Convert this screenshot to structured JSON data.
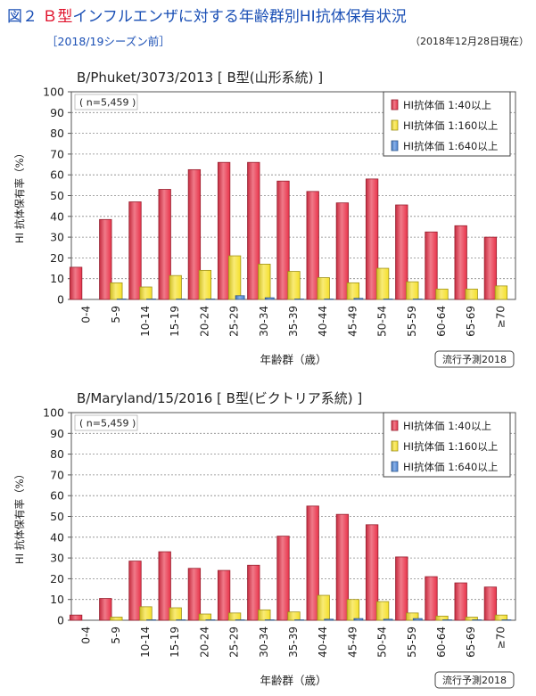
{
  "header": {
    "fig_label": "図２",
    "title_highlight": "Ｂ型",
    "title_rest": "インフルエンザに対する年齢群別HI抗体保有状況",
    "subtitle": "［2018/19シーズン前］",
    "date": "（2018年12月28日現在）"
  },
  "chart_data": [
    {
      "type": "bar",
      "title": "B/Phuket/3073/2013 [ B型(山形系統) ]",
      "annotation": "( n=5,459 )",
      "xlabel": "年齢群（歳）",
      "ylabel": "HI 抗体保有率（%）",
      "ylim": [
        0,
        100
      ],
      "yticks": [
        0,
        10,
        20,
        30,
        40,
        50,
        60,
        70,
        80,
        90,
        100
      ],
      "grid": true,
      "legend_position": "top-right",
      "badge": "流行予測2018",
      "categories": [
        "0-4",
        "5-9",
        "10-14",
        "15-19",
        "20-24",
        "25-29",
        "30-34",
        "35-39",
        "40-44",
        "45-49",
        "50-54",
        "55-59",
        "60-64",
        "65-69",
        "≥70"
      ],
      "series": [
        {
          "name": "HI抗体価 1:40以上",
          "color": "#e8334a",
          "values": [
            15.5,
            38.5,
            47,
            53,
            62.5,
            66,
            66,
            57,
            52,
            46.5,
            58,
            45.5,
            32.5,
            35.5,
            30
          ]
        },
        {
          "name": "HI抗体価 1:160以上",
          "color": "#f5e02a",
          "values": [
            0,
            8,
            6,
            11.5,
            14,
            21,
            17,
            13.5,
            10.5,
            8,
            15,
            8.5,
            5,
            5,
            6.5
          ]
        },
        {
          "name": "HI抗体価 1:640以上",
          "color": "#4a86d8",
          "values": [
            0,
            0.2,
            0.2,
            0.2,
            0.2,
            1.8,
            0.8,
            0.2,
            0.2,
            0.5,
            0.2,
            0.2,
            0,
            0,
            0
          ]
        }
      ]
    },
    {
      "type": "bar",
      "title": "B/Maryland/15/2016 [ B型(ビクトリア系統) ]",
      "annotation": "( n=5,459 )",
      "xlabel": "年齢群（歳）",
      "ylabel": "HI 抗体保有率（%）",
      "ylim": [
        0,
        100
      ],
      "yticks": [
        0,
        10,
        20,
        30,
        40,
        50,
        60,
        70,
        80,
        90,
        100
      ],
      "grid": true,
      "legend_position": "top-right",
      "badge": "流行予測2018",
      "categories": [
        "0-4",
        "5-9",
        "10-14",
        "15-19",
        "20-24",
        "25-29",
        "30-34",
        "35-39",
        "40-44",
        "45-49",
        "50-54",
        "55-59",
        "60-64",
        "65-69",
        "≥70"
      ],
      "series": [
        {
          "name": "HI抗体価 1:40以上",
          "color": "#e8334a",
          "values": [
            2.5,
            10.5,
            28.5,
            33,
            25,
            24,
            26.5,
            40.5,
            55,
            51,
            46,
            30.5,
            21,
            18,
            16
          ]
        },
        {
          "name": "HI抗体価 1:160以上",
          "color": "#f5e02a",
          "values": [
            0,
            1.5,
            6.5,
            6,
            3,
            3.5,
            5,
            4,
            12,
            10,
            9,
            3.5,
            2,
            1.5,
            2.5
          ]
        },
        {
          "name": "HI抗体価 1:640以上",
          "color": "#4a86d8",
          "values": [
            0,
            0,
            0.2,
            0.2,
            0.2,
            0.2,
            0.2,
            0.2,
            0.5,
            0.8,
            0.5,
            0.8,
            0.2,
            0.2,
            0.2
          ]
        }
      ]
    }
  ]
}
